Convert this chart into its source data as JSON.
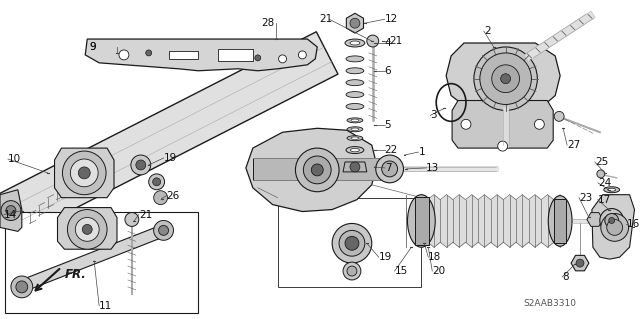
{
  "background_color": "#ffffff",
  "watermark": "S2AAB3310",
  "line_color": "#1a1a1a",
  "light_gray": "#d8d8d8",
  "mid_gray": "#aaaaaa",
  "dark_gray": "#666666",
  "font_size": 7.5
}
